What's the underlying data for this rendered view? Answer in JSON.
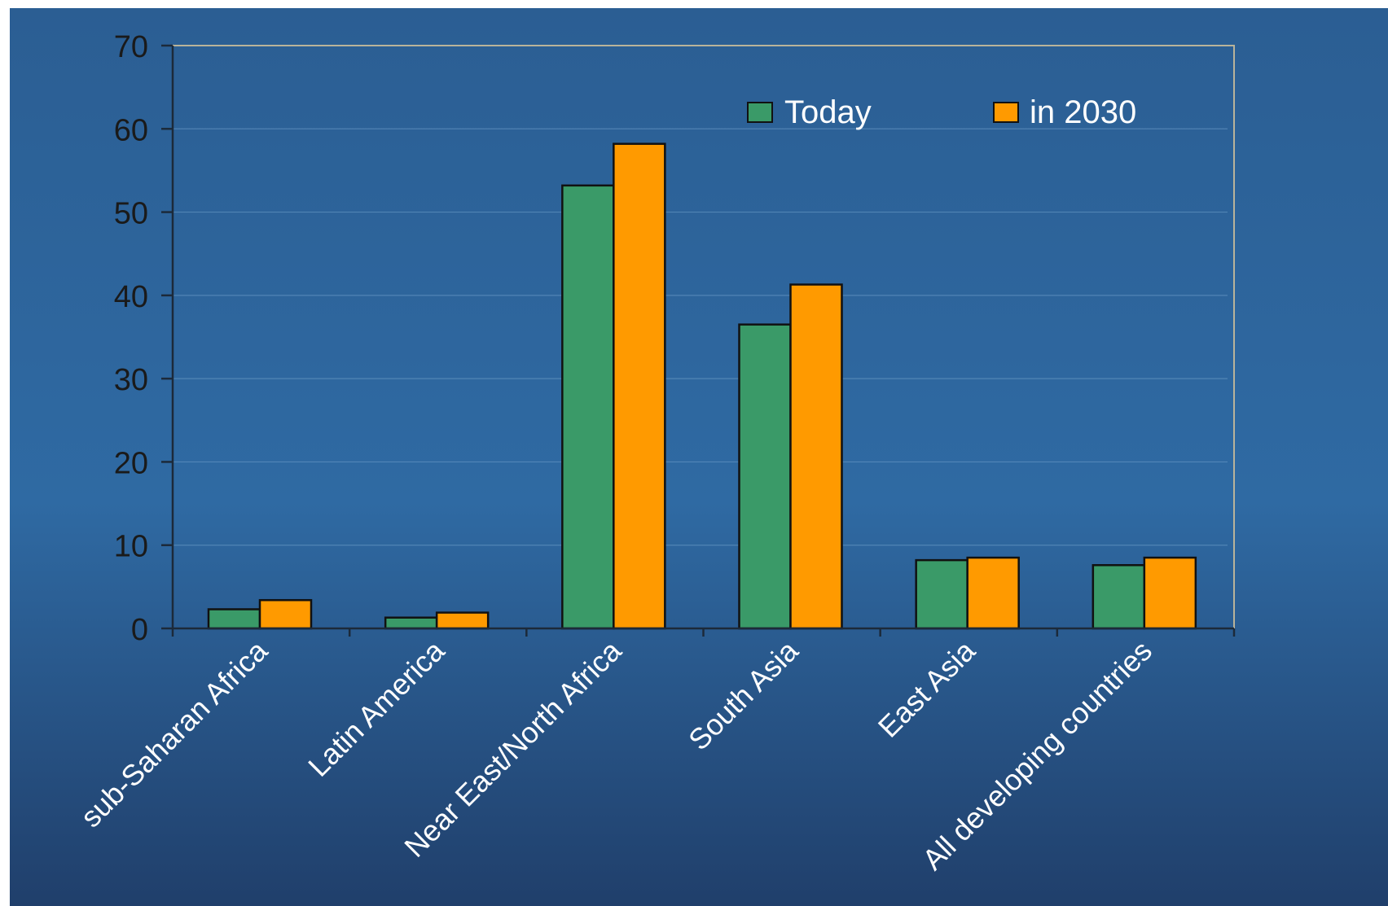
{
  "chart_data": {
    "type": "bar",
    "categories": [
      "sub-Saharan Africa",
      "Latin America",
      "Near East/North Africa",
      "South Asia",
      "East Asia",
      "All developing countries"
    ],
    "series": [
      {
        "name": "Today",
        "color": "#3a9a68",
        "values": [
          2.3,
          1.3,
          53.2,
          36.5,
          8.2,
          7.6
        ]
      },
      {
        "name": "in 2030",
        "color": "#ff9a00",
        "values": [
          3.4,
          1.9,
          58.2,
          41.3,
          8.5,
          8.5
        ]
      }
    ],
    "yticks": [
      "0",
      "10",
      "20",
      "30",
      "40",
      "50",
      "60",
      "70"
    ],
    "ylim": [
      0,
      70
    ],
    "grid": true,
    "legend_position": "top-right",
    "xlabel": "",
    "ylabel": "",
    "title": ""
  },
  "colors": {
    "background_top": "#2b5e93",
    "background_mid": "#2f6aa3",
    "background_bottom": "#203f6b",
    "gridline": "#6f9fca",
    "axis": "#1c2a3a",
    "tick_text": "#1a1a1a",
    "category_text": "#ffffff",
    "legend_text": "#ffffff",
    "bar_outline": "#111111",
    "plot_frame": "#b9b39a"
  }
}
